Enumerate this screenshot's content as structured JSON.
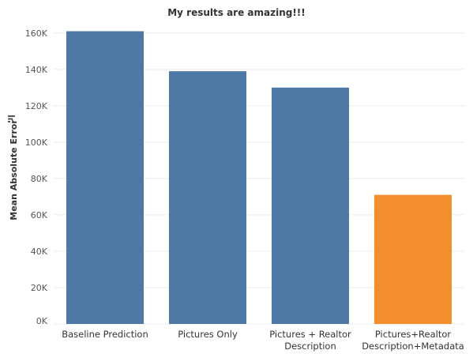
{
  "chart_data": {
    "type": "bar",
    "title": "My results are amazing!!!",
    "xlabel": "",
    "ylabel": "Mean Absolute Error",
    "ylim": [
      0,
      166000
    ],
    "yticks": [
      0,
      20000,
      40000,
      60000,
      80000,
      100000,
      120000,
      140000,
      160000
    ],
    "ytick_labels": [
      "0K",
      "20K",
      "40K",
      "60K",
      "80K",
      "100K",
      "120K",
      "140K",
      "160K"
    ],
    "categories": [
      [
        "Baseline Prediction"
      ],
      [
        "Pictures Only"
      ],
      [
        "Pictures + Realtor",
        "Description"
      ],
      [
        "Pictures+Realtor",
        "Description+Metadata"
      ]
    ],
    "values": [
      161000,
      139000,
      130000,
      71000
    ],
    "colors": [
      "#4e79a7",
      "#4e79a7",
      "#4e79a7",
      "#f28e2b"
    ],
    "grid": true,
    "sort_icon": "sort-descending-icon"
  }
}
